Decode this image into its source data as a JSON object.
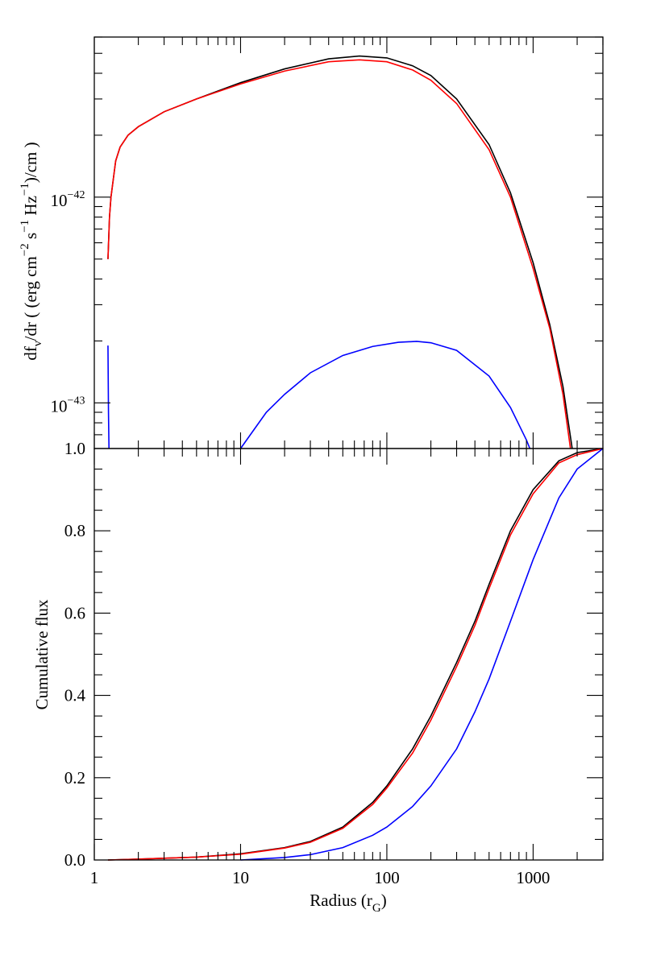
{
  "chart_data": [
    {
      "type": "line",
      "panel": "top",
      "xscale": "log",
      "yscale": "log",
      "xlim": [
        1,
        3000
      ],
      "ylim": [
        6e-44,
        6e-42
      ],
      "ylabel": "df_ν/dr ( (erg cm^−2 s^−1 Hz^−1)/cm )",
      "ylabel_parts": {
        "df": "df",
        "nu": "ν",
        "middle": "/dr ( (erg cm",
        "e1": "−2",
        "s": " s",
        "e2": "−1",
        "hz": " Hz",
        "e3": "−1",
        "end": ")/cm )"
      },
      "ytick_labels": [
        {
          "value": 1e-42,
          "base": "10",
          "exp": "−42"
        },
        {
          "value": 1e-43,
          "base": "10",
          "exp": "−43"
        }
      ],
      "series": [
        {
          "color": "#000000",
          "x": [
            1.24,
            1.27,
            1.3,
            1.4,
            1.5,
            1.7,
            2,
            3,
            5,
            10,
            20,
            40,
            65,
            100,
            150,
            200,
            300,
            500,
            700,
            1000,
            1300,
            1600,
            1850
          ],
          "y": [
            5e-43,
            8e-43,
            1e-42,
            1.5e-42,
            1.75e-42,
            2e-42,
            2.2e-42,
            2.6e-42,
            3e-42,
            3.6e-42,
            4.2e-42,
            4.7e-42,
            4.85e-42,
            4.75e-42,
            4.35e-42,
            3.9e-42,
            3e-42,
            1.8e-42,
            1.05e-42,
            4.8e-43,
            2.4e-43,
            1.2e-43,
            6e-44
          ]
        },
        {
          "color": "#ff0000",
          "x": [
            1.24,
            1.27,
            1.3,
            1.4,
            1.5,
            1.7,
            2,
            3,
            5,
            10,
            20,
            40,
            65,
            100,
            150,
            200,
            300,
            500,
            700,
            1000,
            1300,
            1600,
            1800
          ],
          "y": [
            5e-43,
            8e-43,
            1e-42,
            1.5e-42,
            1.75e-42,
            2e-42,
            2.2e-42,
            2.6e-42,
            3e-42,
            3.55e-42,
            4.1e-42,
            4.55e-42,
            4.65e-42,
            4.55e-42,
            4.15e-42,
            3.7e-42,
            2.85e-42,
            1.7e-42,
            1e-42,
            4.5e-43,
            2.3e-43,
            1.1e-43,
            6e-44
          ]
        },
        {
          "color": "#0000ff",
          "x": [
            10,
            12,
            15,
            20,
            30,
            50,
            80,
            120,
            160,
            200,
            300,
            500,
            700,
            900,
            950
          ],
          "y": [
            6e-44,
            7.2e-44,
            9e-44,
            1.1e-43,
            1.4e-43,
            1.7e-43,
            1.88e-43,
            1.97e-43,
            1.99e-43,
            1.96e-43,
            1.8e-43,
            1.35e-43,
            9.5e-44,
            6.6e-44,
            6e-44
          ]
        },
        {
          "color": "#0000ff",
          "x": [
            1.24,
            1.245,
            1.25,
            1.26
          ],
          "y": [
            1.9e-43,
            1.3e-43,
            9e-44,
            6e-44
          ]
        }
      ]
    },
    {
      "type": "line",
      "panel": "bottom",
      "xscale": "log",
      "xlim": [
        1,
        3000
      ],
      "ylim": [
        0,
        1
      ],
      "xlabel": "Radius (r_G)",
      "xlabel_parts": {
        "main": "Radius (r",
        "sub": "G",
        "end": ")"
      },
      "ylabel": "Cumulative flux",
      "xtick_labels": [
        {
          "value": 1,
          "label": "1"
        },
        {
          "value": 10,
          "label": "10"
        },
        {
          "value": 100,
          "label": "100"
        },
        {
          "value": 1000,
          "label": "1000"
        }
      ],
      "ytick_labels": [
        {
          "value": 0,
          "label": "0.0"
        },
        {
          "value": 0.2,
          "label": "0.2"
        },
        {
          "value": 0.4,
          "label": "0.4"
        },
        {
          "value": 0.6,
          "label": "0.6"
        },
        {
          "value": 0.8,
          "label": "0.8"
        },
        {
          "value": 1,
          "label": "1.0"
        }
      ],
      "series": [
        {
          "color": "#000000",
          "x": [
            1.24,
            2,
            5,
            10,
            20,
            30,
            50,
            80,
            100,
            150,
            200,
            300,
            400,
            500,
            700,
            1000,
            1500,
            2000,
            3000
          ],
          "y": [
            0,
            0.002,
            0.007,
            0.015,
            0.03,
            0.045,
            0.08,
            0.14,
            0.18,
            0.27,
            0.35,
            0.48,
            0.58,
            0.67,
            0.8,
            0.9,
            0.97,
            0.99,
            1.0
          ]
        },
        {
          "color": "#ff0000",
          "x": [
            1.24,
            2,
            5,
            10,
            20,
            30,
            50,
            80,
            100,
            150,
            200,
            300,
            400,
            500,
            700,
            1000,
            1500,
            2000,
            3000
          ],
          "y": [
            0,
            0.002,
            0.007,
            0.014,
            0.029,
            0.043,
            0.077,
            0.135,
            0.175,
            0.26,
            0.34,
            0.47,
            0.57,
            0.66,
            0.79,
            0.89,
            0.965,
            0.985,
            1.0
          ]
        },
        {
          "color": "#0000ff",
          "x": [
            10,
            20,
            30,
            50,
            80,
            100,
            150,
            200,
            300,
            400,
            500,
            700,
            1000,
            1500,
            2000,
            3000
          ],
          "y": [
            0,
            0.006,
            0.013,
            0.03,
            0.06,
            0.08,
            0.13,
            0.18,
            0.27,
            0.36,
            0.44,
            0.58,
            0.73,
            0.88,
            0.95,
            1.0
          ]
        }
      ]
    }
  ]
}
